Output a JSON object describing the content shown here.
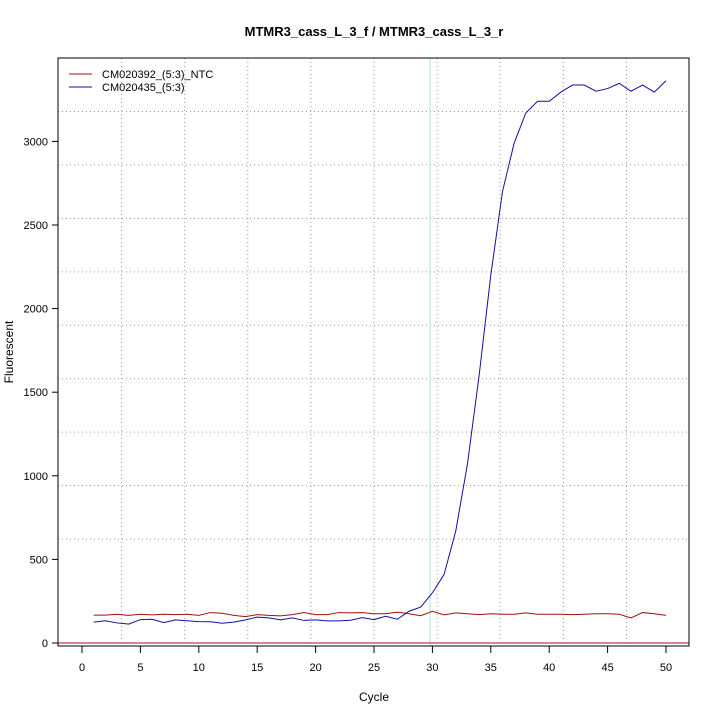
{
  "chart_data": {
    "type": "line",
    "title": "MTMR3_cass_L_3_f / MTMR3_cass_L_3_r",
    "xlabel": "Cycle",
    "ylabel": "Fluorescent",
    "xlim": [
      -2.05,
      52
    ],
    "ylim": [
      -15,
      3500
    ],
    "xticks": [
      0,
      5,
      10,
      15,
      20,
      25,
      30,
      35,
      40,
      45,
      50
    ],
    "yticks": [
      0,
      500,
      1000,
      1500,
      2000,
      2500,
      3000
    ],
    "grid": true,
    "legend_position": "top-left",
    "threshold_cycle": 29.8,
    "baseline_value": 0,
    "colors": {
      "threshold": "#a8e4ec",
      "baseline": "#c06070",
      "grid": "#999999"
    },
    "x": [
      1,
      2,
      3,
      4,
      5,
      6,
      7,
      8,
      9,
      10,
      11,
      12,
      13,
      14,
      15,
      16,
      17,
      18,
      19,
      20,
      21,
      22,
      23,
      24,
      25,
      26,
      27,
      28,
      29,
      30,
      31,
      32,
      33,
      34,
      35,
      36,
      37,
      38,
      39,
      40,
      41,
      42,
      43,
      44,
      45,
      46,
      47,
      48,
      49,
      50
    ],
    "series": [
      {
        "name": "CM020392_(5:3)_NTC",
        "color": "#a01010",
        "values": [
          167,
          167,
          172,
          165,
          172,
          168,
          172,
          170,
          172,
          165,
          182,
          178,
          165,
          158,
          170,
          165,
          162,
          170,
          182,
          170,
          170,
          182,
          180,
          182,
          175,
          175,
          185,
          175,
          163,
          190,
          168,
          180,
          175,
          170,
          175,
          172,
          172,
          180,
          172,
          172,
          172,
          170,
          172,
          175,
          175,
          172,
          150,
          182,
          175,
          165
        ]
      },
      {
        "name": "CM020435_(5:3)",
        "color": "#1010a0",
        "values": [
          125,
          133,
          120,
          113,
          140,
          142,
          122,
          138,
          133,
          128,
          127,
          118,
          125,
          138,
          155,
          150,
          138,
          150,
          135,
          138,
          132,
          132,
          136,
          152,
          140,
          160,
          142,
          190,
          215,
          300,
          410,
          670,
          1070,
          1600,
          2200,
          2700,
          2990,
          3170,
          3240,
          3240,
          3295,
          3337,
          3337,
          3300,
          3316,
          3347,
          3300,
          3337,
          3295,
          3363
        ]
      }
    ]
  }
}
